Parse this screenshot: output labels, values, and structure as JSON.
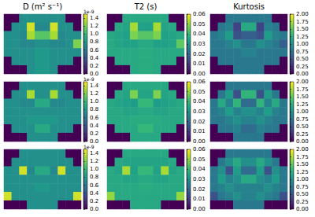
{
  "chart_data": [
    {
      "type": "heatmap",
      "title": "D (m² s⁻¹)",
      "tick_labels": false,
      "colorbar": {
        "range": [
          0,
          1.5e-09
        ],
        "offset_text": "1e-9",
        "ticks": [
          {
            "value": 0,
            "label": "0.0"
          },
          {
            "value": 2e-10,
            "label": "0.2"
          },
          {
            "value": 4e-10,
            "label": "0.4"
          },
          {
            "value": 6e-10,
            "label": "0.6"
          },
          {
            "value": 8e-10,
            "label": "0.8"
          },
          {
            "value": 1e-09,
            "label": "1.0"
          },
          {
            "value": 1.2e-09,
            "label": "1.2"
          },
          {
            "value": 1.4e-09,
            "label": "1.4"
          }
        ]
      },
      "panels": [
        {
          "cells": [
            [
              0,
              0,
              7.5e-10,
              7.5e-10,
              7.5e-10,
              7.5e-10,
              7.5e-10,
              7.5e-10,
              0,
              0
            ],
            [
              0,
              7.5e-10,
              7.5e-10,
              1.4e-09,
              7e-10,
              7e-10,
              1.4e-09,
              7.5e-10,
              7.5e-10,
              0
            ],
            [
              7.5e-10,
              7.5e-10,
              7e-10,
              1.3e-09,
              1.1e-09,
              1.1e-09,
              1.3e-09,
              7e-10,
              7.5e-10,
              7.5e-10
            ],
            [
              7.5e-10,
              7.5e-10,
              7e-10,
              7e-10,
              7.5e-10,
              7.5e-10,
              7e-10,
              7e-10,
              7.5e-10,
              1.2e-09
            ],
            [
              7.5e-10,
              7.5e-10,
              7.5e-10,
              7.5e-10,
              8e-10,
              8e-10,
              7.5e-10,
              7.5e-10,
              7.5e-10,
              7.5e-10
            ],
            [
              0,
              7.5e-10,
              7.5e-10,
              7.5e-10,
              8e-10,
              8e-10,
              7.5e-10,
              7.5e-10,
              7.5e-10,
              0
            ],
            [
              0,
              0,
              0,
              7.5e-10,
              8e-10,
              8e-10,
              7.5e-10,
              0,
              0,
              0
            ]
          ]
        },
        {
          "cells": [
            [
              0,
              0,
              7.5e-10,
              7.5e-10,
              7.5e-10,
              7.5e-10,
              7.5e-10,
              7.5e-10,
              0,
              0
            ],
            [
              0,
              7.5e-10,
              7.5e-10,
              1.3e-09,
              7.5e-10,
              7.5e-10,
              1.3e-09,
              7.5e-10,
              7.5e-10,
              0
            ],
            [
              7.5e-10,
              7.5e-10,
              7e-10,
              7e-10,
              9e-10,
              9e-10,
              7e-10,
              7e-10,
              7.5e-10,
              7.5e-10
            ],
            [
              7.5e-10,
              7.5e-10,
              7.5e-10,
              7.5e-10,
              7.5e-10,
              7.5e-10,
              7.5e-10,
              7.5e-10,
              7.5e-10,
              7.5e-10
            ],
            [
              7.5e-10,
              7.5e-10,
              7.5e-10,
              8e-10,
              8e-10,
              8e-10,
              8e-10,
              7.5e-10,
              7.5e-10,
              7.5e-10
            ],
            [
              0,
              7.5e-10,
              7.5e-10,
              7.5e-10,
              9e-10,
              9e-10,
              7.5e-10,
              7.5e-10,
              7.5e-10,
              0
            ],
            [
              0,
              0,
              0,
              7.5e-10,
              7.5e-10,
              7.5e-10,
              7.5e-10,
              0,
              0,
              0
            ]
          ]
        },
        {
          "cells": [
            [
              0,
              0,
              7.5e-10,
              7.5e-10,
              7.5e-10,
              7.5e-10,
              7.5e-10,
              7.5e-10,
              0,
              0
            ],
            [
              0,
              7.5e-10,
              7.5e-10,
              7.5e-10,
              7.5e-10,
              7.5e-10,
              7.5e-10,
              7.5e-10,
              7.5e-10,
              0
            ],
            [
              7.5e-10,
              7.5e-10,
              1.4e-09,
              7e-10,
              9e-10,
              9e-10,
              7e-10,
              1.4e-09,
              7.5e-10,
              7.5e-10
            ],
            [
              7.5e-10,
              7.5e-10,
              7.5e-10,
              7.5e-10,
              7.5e-10,
              7.5e-10,
              7.5e-10,
              7.5e-10,
              7.5e-10,
              7.5e-10
            ],
            [
              7.5e-10,
              7.5e-10,
              7.5e-10,
              7.5e-10,
              8e-10,
              8e-10,
              7.5e-10,
              7.5e-10,
              7.5e-10,
              7.5e-10
            ],
            [
              1.4e-09,
              7.5e-10,
              7.5e-10,
              7.5e-10,
              7.5e-10,
              7.5e-10,
              7.5e-10,
              7.5e-10,
              7.5e-10,
              1.4e-09
            ],
            [
              0,
              0,
              0,
              7.5e-10,
              7.5e-10,
              7.5e-10,
              7.5e-10,
              0,
              0,
              0
            ]
          ]
        }
      ]
    },
    {
      "type": "heatmap",
      "title": "T2 (s)",
      "tick_labels": false,
      "colorbar": {
        "range": [
          0,
          0.06
        ],
        "ticks": [
          {
            "value": 0,
            "label": "0.00"
          },
          {
            "value": 0.01,
            "label": "0.01"
          },
          {
            "value": 0.02,
            "label": "0.02"
          },
          {
            "value": 0.03,
            "label": "0.03"
          },
          {
            "value": 0.04,
            "label": "0.04"
          },
          {
            "value": 0.05,
            "label": "0.05"
          },
          {
            "value": 0.06,
            "label": "0.06"
          }
        ]
      },
      "panels": [
        {
          "cells": [
            [
              0,
              0,
              0.036,
              0.036,
              0.036,
              0.036,
              0.036,
              0.036,
              0,
              0
            ],
            [
              0,
              0.036,
              0.035,
              0.052,
              0.034,
              0.034,
              0.052,
              0.035,
              0.036,
              0
            ],
            [
              0.036,
              0.035,
              0.034,
              0.048,
              0.044,
              0.044,
              0.048,
              0.034,
              0.035,
              0.036
            ],
            [
              0.036,
              0.035,
              0.034,
              0.034,
              0.036,
              0.036,
              0.034,
              0.034,
              0.035,
              0.045
            ],
            [
              0.036,
              0.036,
              0.036,
              0.036,
              0.037,
              0.037,
              0.036,
              0.036,
              0.036,
              0.036
            ],
            [
              0,
              0.036,
              0.036,
              0.036,
              0.037,
              0.037,
              0.036,
              0.036,
              0.036,
              0
            ],
            [
              0,
              0,
              0,
              0.036,
              0.037,
              0.037,
              0.036,
              0,
              0,
              0
            ]
          ]
        },
        {
          "cells": [
            [
              0,
              0,
              0.036,
              0.036,
              0.036,
              0.036,
              0.036,
              0.036,
              0,
              0
            ],
            [
              0,
              0.036,
              0.035,
              0.048,
              0.035,
              0.035,
              0.048,
              0.035,
              0.036,
              0
            ],
            [
              0.036,
              0.035,
              0.034,
              0.033,
              0.04,
              0.04,
              0.033,
              0.034,
              0.035,
              0.036
            ],
            [
              0.036,
              0.036,
              0.035,
              0.035,
              0.036,
              0.036,
              0.035,
              0.035,
              0.036,
              0.036
            ],
            [
              0.036,
              0.036,
              0.036,
              0.037,
              0.037,
              0.037,
              0.037,
              0.036,
              0.036,
              0.036
            ],
            [
              0,
              0.036,
              0.036,
              0.036,
              0.04,
              0.04,
              0.036,
              0.036,
              0.036,
              0
            ],
            [
              0,
              0,
              0,
              0.036,
              0.036,
              0.036,
              0.036,
              0,
              0,
              0
            ]
          ]
        },
        {
          "cells": [
            [
              0,
              0,
              0.036,
              0.036,
              0.036,
              0.036,
              0.036,
              0.036,
              0,
              0
            ],
            [
              0,
              0.036,
              0.035,
              0.035,
              0.035,
              0.035,
              0.035,
              0.035,
              0.036,
              0
            ],
            [
              0.036,
              0.035,
              0.052,
              0.034,
              0.04,
              0.04,
              0.034,
              0.052,
              0.035,
              0.036
            ],
            [
              0.036,
              0.036,
              0.035,
              0.035,
              0.036,
              0.036,
              0.035,
              0.035,
              0.036,
              0.036
            ],
            [
              0.036,
              0.036,
              0.036,
              0.036,
              0.037,
              0.037,
              0.036,
              0.036,
              0.036,
              0.036
            ],
            [
              0.05,
              0.036,
              0.036,
              0.036,
              0.036,
              0.036,
              0.036,
              0.036,
              0.036,
              0.05
            ],
            [
              0,
              0,
              0,
              0.036,
              0.036,
              0.036,
              0.036,
              0,
              0,
              0
            ]
          ]
        }
      ]
    },
    {
      "type": "heatmap",
      "title": "Kurtosis",
      "tick_labels": false,
      "colorbar": {
        "range": [
          0,
          2
        ],
        "ticks": [
          {
            "value": 0,
            "label": "0.00"
          },
          {
            "value": 0.25,
            "label": "0.25"
          },
          {
            "value": 0.5,
            "label": "0.50"
          },
          {
            "value": 0.75,
            "label": "0.75"
          },
          {
            "value": 1,
            "label": "1.00"
          },
          {
            "value": 1.25,
            "label": "1.25"
          },
          {
            "value": 1.5,
            "label": "1.50"
          },
          {
            "value": 1.75,
            "label": "1.75"
          },
          {
            "value": 2,
            "label": "2.00"
          }
        ]
      },
      "panels": [
        {
          "cells": [
            [
              0,
              0,
              0.8,
              0.8,
              0.8,
              0.8,
              0.8,
              0.8,
              0,
              0
            ],
            [
              0,
              0.8,
              0.9,
              0.4,
              1.2,
              1.2,
              0.4,
              0.9,
              0.8,
              0
            ],
            [
              0.8,
              0.9,
              1.1,
              0.5,
              0.6,
              0.6,
              0.5,
              1.1,
              0.9,
              0.8
            ],
            [
              0.8,
              0.8,
              0.9,
              1.0,
              0.8,
              0.8,
              1.0,
              0.9,
              0.8,
              0.6
            ],
            [
              0.8,
              0.8,
              0.8,
              0.8,
              0.9,
              0.9,
              0.8,
              0.8,
              0.8,
              0.8
            ],
            [
              0,
              0.8,
              0.8,
              0.8,
              0.8,
              0.8,
              0.8,
              0.8,
              0.8,
              0
            ],
            [
              0,
              0,
              0,
              0.8,
              0.8,
              0.8,
              0.8,
              0,
              0,
              0
            ]
          ]
        },
        {
          "cells": [
            [
              0,
              0,
              0.8,
              0.8,
              0.8,
              0.8,
              0.8,
              0.8,
              0,
              0
            ],
            [
              0,
              0.8,
              1.1,
              0.5,
              1.3,
              1.3,
              0.5,
              1.1,
              0.8,
              0
            ],
            [
              0.8,
              1.2,
              0.9,
              1.3,
              0.7,
              0.7,
              1.3,
              0.9,
              1.2,
              0.8
            ],
            [
              0.8,
              0.9,
              1.1,
              0.9,
              1.0,
              1.0,
              0.9,
              1.1,
              0.9,
              0.8
            ],
            [
              0.8,
              0.8,
              0.9,
              1.0,
              0.9,
              0.9,
              1.0,
              0.9,
              0.8,
              0.8
            ],
            [
              0,
              0.8,
              0.8,
              0.9,
              0.7,
              0.7,
              0.9,
              0.8,
              0.8,
              0
            ],
            [
              0,
              0,
              0,
              0.8,
              0.8,
              0.8,
              0.8,
              0,
              0,
              0
            ]
          ]
        },
        {
          "cells": [
            [
              0,
              0,
              0.8,
              0.8,
              0.8,
              0.8,
              0.8,
              0.8,
              0,
              0
            ],
            [
              0,
              0.8,
              1.0,
              1.2,
              1.0,
              1.0,
              1.2,
              1.0,
              0.8,
              0
            ],
            [
              0.8,
              1.0,
              0.5,
              1.1,
              0.7,
              0.7,
              1.1,
              0.5,
              1.0,
              0.8
            ],
            [
              0.8,
              1.1,
              0.9,
              1.0,
              1.2,
              1.2,
              1.0,
              0.9,
              1.1,
              0.8
            ],
            [
              0.8,
              0.9,
              1.0,
              0.9,
              0.9,
              0.9,
              0.9,
              1.0,
              0.9,
              0.8
            ],
            [
              0.5,
              0.8,
              0.9,
              1.0,
              0.9,
              0.9,
              1.0,
              0.9,
              0.8,
              0.5
            ],
            [
              0,
              0,
              0,
              0.8,
              0.8,
              0.8,
              0.8,
              0,
              0,
              0
            ]
          ]
        }
      ]
    }
  ]
}
